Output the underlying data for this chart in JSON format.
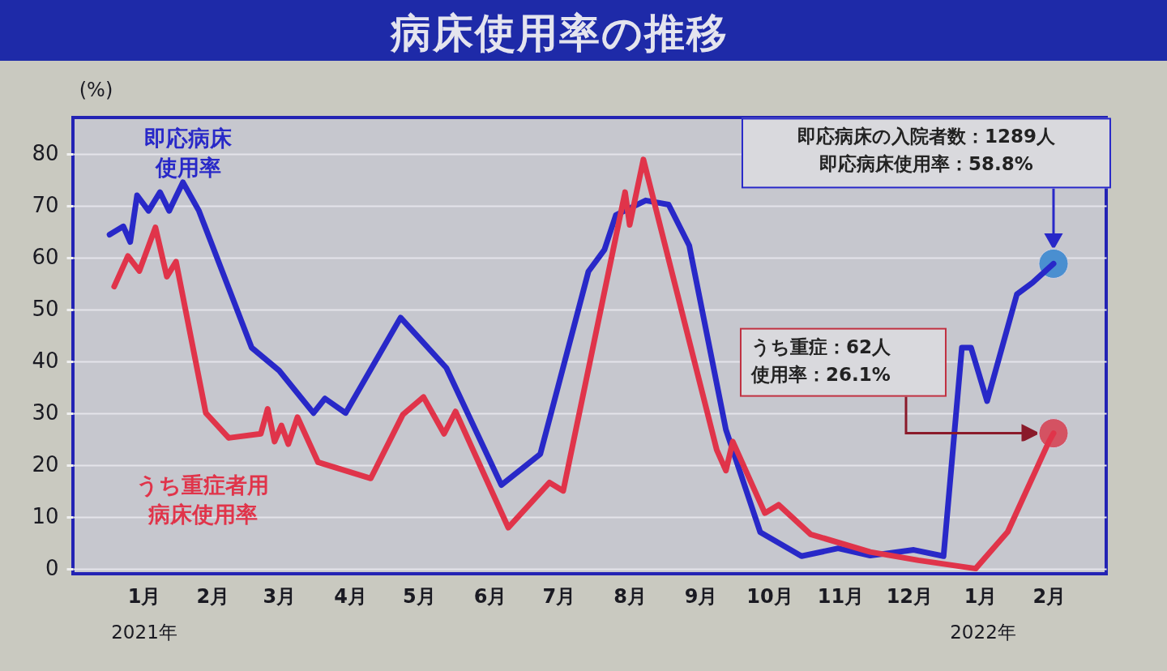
{
  "chart_data": {
    "type": "line",
    "title": "病床使用率の推移",
    "ylabel": "(%)",
    "xlim": [
      "2020-12-16",
      "2022-03-12"
    ],
    "xticks": [
      {
        "value": "2021-01-16",
        "label": "1月"
      },
      {
        "value": "2021-02-15",
        "label": "2月"
      },
      {
        "value": "2021-03-16",
        "label": "3月"
      },
      {
        "value": "2021-04-16",
        "label": "4月"
      },
      {
        "value": "2021-05-16",
        "label": "5月"
      },
      {
        "value": "2021-06-16",
        "label": "6月"
      },
      {
        "value": "2021-07-16",
        "label": "7月"
      },
      {
        "value": "2021-08-16",
        "label": "8月"
      },
      {
        "value": "2021-09-16",
        "label": "9月"
      },
      {
        "value": "2021-10-16",
        "label": "10月"
      },
      {
        "value": "2021-11-16",
        "label": "11月"
      },
      {
        "value": "2021-12-16",
        "label": "12月"
      },
      {
        "value": "2022-01-16",
        "label": "1月"
      },
      {
        "value": "2022-02-15",
        "label": "2月"
      }
    ],
    "ylim": [
      -1,
      87
    ],
    "yticks": [
      0,
      10,
      20,
      30,
      40,
      50,
      60,
      70,
      80
    ],
    "grid": "y",
    "legend": false,
    "line_style": "solid",
    "series": [
      {
        "name": "即応病床使用率",
        "color": "#2828c8",
        "x": [
          "2021-01-01",
          "2021-01-07",
          "2021-01-10",
          "2021-01-13",
          "2021-01-18",
          "2021-01-23",
          "2021-01-27",
          "2021-02-02",
          "2021-02-09",
          "2021-03-04",
          "2021-03-16",
          "2021-03-31",
          "2021-04-05",
          "2021-04-14",
          "2021-05-08",
          "2021-05-28",
          "2021-06-21",
          "2021-07-08",
          "2021-07-29",
          "2021-08-05",
          "2021-08-10",
          "2021-08-23",
          "2021-09-02",
          "2021-09-11",
          "2021-09-27",
          "2021-10-12",
          "2021-10-30",
          "2021-11-15",
          "2021-11-29",
          "2021-12-18",
          "2021-12-31",
          "2022-01-08",
          "2022-01-12",
          "2022-01-19",
          "2022-02-01",
          "2022-02-08",
          "2022-02-17"
        ],
        "values": [
          64.4,
          66,
          63,
          72,
          69,
          72.6,
          69,
          74.5,
          69,
          42.6,
          38.2,
          30,
          32.8,
          30,
          48.4,
          38.7,
          16.1,
          22.1,
          57.3,
          61.5,
          68.2,
          71,
          70.2,
          62.3,
          26.8,
          7,
          2.4,
          3.9,
          2.5,
          3.6,
          2.4,
          42.6,
          42.6,
          32.3,
          52.9,
          55.2,
          58.8
        ]
      },
      {
        "name": "うち重症者用病床使用率",
        "color": "#e0344a",
        "x": [
          "2021-01-03",
          "2021-01-09",
          "2021-01-14",
          "2021-01-21",
          "2021-01-26",
          "2021-01-30",
          "2021-02-12",
          "2021-02-22",
          "2021-03-08",
          "2021-03-11",
          "2021-03-14",
          "2021-03-17",
          "2021-03-20",
          "2021-03-24",
          "2021-04-02",
          "2021-04-25",
          "2021-05-09",
          "2021-05-18",
          "2021-05-27",
          "2021-06-01",
          "2021-06-24",
          "2021-07-12",
          "2021-07-18",
          "2021-08-14",
          "2021-08-16",
          "2021-08-22",
          "2021-09-23",
          "2021-09-27",
          "2021-09-30",
          "2021-10-14",
          "2021-10-20",
          "2021-11-03",
          "2021-11-29",
          "2021-12-20",
          "2022-01-14",
          "2022-01-28",
          "2022-02-15",
          "2022-02-17"
        ],
        "values": [
          54.4,
          60.3,
          57.4,
          65.8,
          56.3,
          59.2,
          30,
          25.2,
          26,
          30.8,
          24.5,
          27.6,
          24,
          29.2,
          20.5,
          17.4,
          29.7,
          33.1,
          26,
          30.3,
          7.9,
          16.6,
          15,
          72.6,
          66.3,
          78.9,
          22.9,
          18.9,
          24.5,
          10.7,
          12.3,
          6.6,
          3.2,
          1.6,
          0,
          7.1,
          24.5,
          26.1
        ]
      }
    ],
    "annotations": [
      "即応病床の入院者数：1289人即応病床使用率：58.8%",
      "うち重症：62人使用率：26.1%",
      "2021年",
      "2022年"
    ]
  }
}
